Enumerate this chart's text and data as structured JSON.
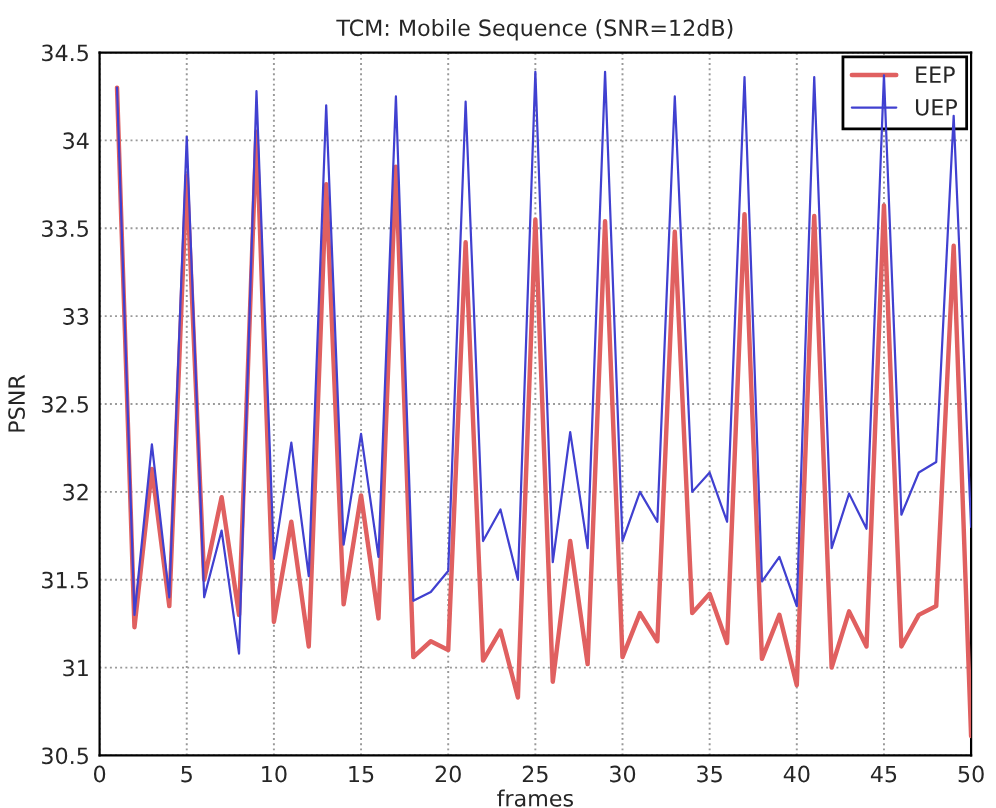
{
  "chart_data": {
    "type": "line",
    "title": "TCM: Mobile Sequence (SNR=12dB)",
    "xlabel": "frames",
    "ylabel": "PSNR",
    "x": [
      1,
      2,
      3,
      4,
      5,
      6,
      7,
      8,
      9,
      10,
      11,
      12,
      13,
      14,
      15,
      16,
      17,
      18,
      19,
      20,
      21,
      22,
      23,
      24,
      25,
      26,
      27,
      28,
      29,
      30,
      31,
      32,
      33,
      34,
      35,
      36,
      37,
      38,
      39,
      40,
      41,
      42,
      43,
      44,
      45,
      46,
      47,
      48,
      49,
      50
    ],
    "series": [
      {
        "name": "EEP",
        "color": "#e06060",
        "values": [
          34.3,
          31.23,
          32.13,
          31.35,
          33.8,
          31.5,
          31.97,
          31.3,
          34.05,
          31.26,
          31.83,
          31.12,
          33.75,
          31.36,
          31.98,
          31.28,
          33.85,
          31.06,
          31.15,
          31.1,
          33.42,
          31.04,
          31.21,
          30.83,
          33.55,
          30.92,
          31.72,
          31.02,
          33.54,
          31.06,
          31.31,
          31.15,
          33.48,
          31.31,
          31.42,
          31.14,
          33.58,
          31.05,
          31.3,
          30.9,
          33.57,
          31.0,
          31.32,
          31.12,
          33.63,
          31.12,
          31.3,
          31.35,
          33.4,
          30.61
        ]
      },
      {
        "name": "UEP",
        "color": "#4040d0",
        "values": [
          34.3,
          31.3,
          32.27,
          31.4,
          34.02,
          31.4,
          31.78,
          31.08,
          34.28,
          31.62,
          32.28,
          31.52,
          34.2,
          31.7,
          32.33,
          31.63,
          34.25,
          31.38,
          31.43,
          31.55,
          34.22,
          31.72,
          31.9,
          31.5,
          34.39,
          31.6,
          32.34,
          31.68,
          34.39,
          31.72,
          32.0,
          31.83,
          34.25,
          32.0,
          32.11,
          31.83,
          34.36,
          31.49,
          31.63,
          31.35,
          34.36,
          31.68,
          31.99,
          31.79,
          34.37,
          31.87,
          32.11,
          32.17,
          34.14,
          31.8
        ]
      }
    ],
    "xlim": [
      0,
      50
    ],
    "xticks": [
      0,
      5,
      10,
      15,
      20,
      25,
      30,
      35,
      40,
      45,
      50
    ],
    "ylim": [
      30.5,
      34.5
    ],
    "yticks": [
      30.5,
      31,
      31.5,
      32,
      32.5,
      33,
      33.5,
      34,
      34.5
    ],
    "grid": true,
    "legend": "top right",
    "line_style": "solid",
    "marker": "none"
  }
}
